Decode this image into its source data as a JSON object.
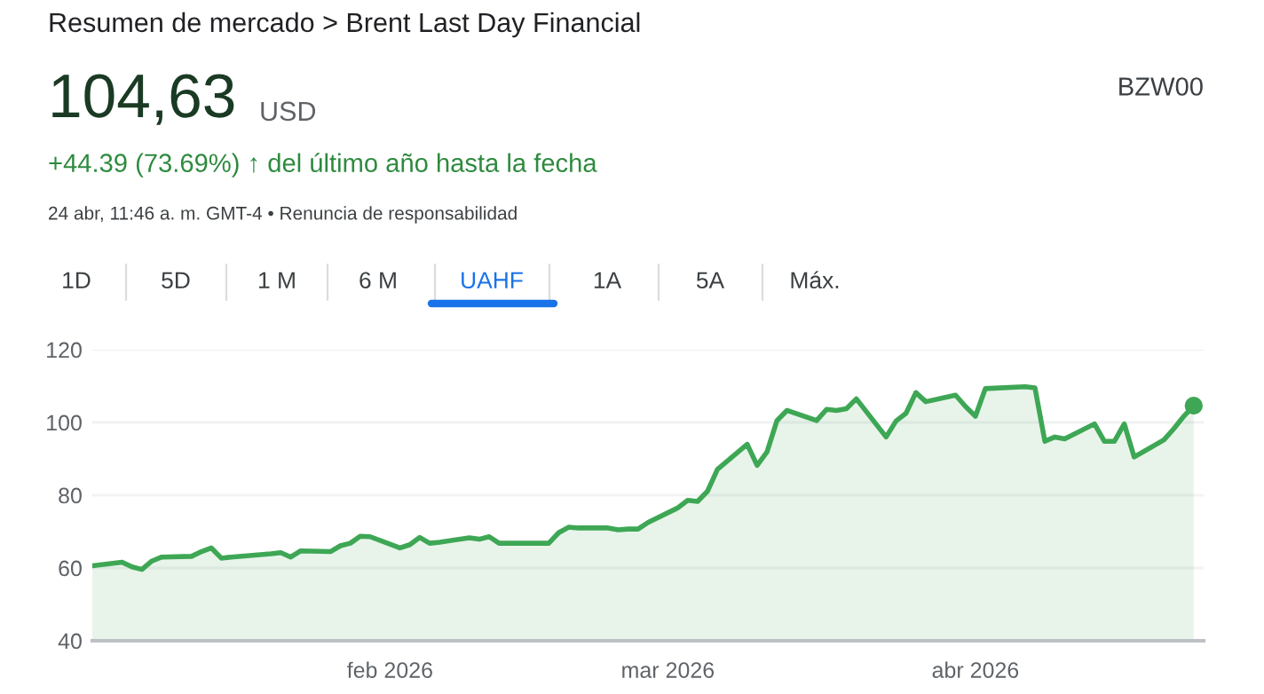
{
  "chart_data": {
    "type": "area",
    "title": "Resumen de mercado > Brent Last Day Financial",
    "annotations": [
      "104,63",
      "USD",
      "BZW00",
      "+44.39 (73.69%) ↑ del último año hasta la fecha",
      "24 abr, 11:46 a. m. GMT-4 • Renuncia de responsabilidad",
      "1D",
      "5D",
      "1 M",
      "6 M",
      "UAHF",
      "1A",
      "5A",
      "Máx."
    ],
    "x": [
      "2026-01-02",
      "2026-01-05",
      "2026-01-06",
      "2026-01-07",
      "2026-01-08",
      "2026-01-09",
      "2026-01-12",
      "2026-01-13",
      "2026-01-14",
      "2026-01-15",
      "2026-01-16",
      "2026-01-20",
      "2026-01-21",
      "2026-01-22",
      "2026-01-23",
      "2026-01-26",
      "2026-01-27",
      "2026-01-28",
      "2026-01-29",
      "2026-01-30",
      "2026-02-02",
      "2026-02-03",
      "2026-02-04",
      "2026-02-05",
      "2026-02-06",
      "2026-02-09",
      "2026-02-10",
      "2026-02-11",
      "2026-02-12",
      "2026-02-13",
      "2026-02-17",
      "2026-02-18",
      "2026-02-19",
      "2026-02-20",
      "2026-02-23",
      "2026-02-24",
      "2026-02-25",
      "2026-02-26",
      "2026-02-27",
      "2026-03-02",
      "2026-03-03",
      "2026-03-04",
      "2026-03-05",
      "2026-03-06",
      "2026-03-09",
      "2026-03-10",
      "2026-03-11",
      "2026-03-12",
      "2026-03-13",
      "2026-03-16",
      "2026-03-17",
      "2026-03-18",
      "2026-03-19",
      "2026-03-20",
      "2026-03-23",
      "2026-03-24",
      "2026-03-25",
      "2026-03-26",
      "2026-03-27",
      "2026-03-30",
      "2026-03-31",
      "2026-04-01",
      "2026-04-02",
      "2026-04-06",
      "2026-04-07",
      "2026-04-08",
      "2026-04-09",
      "2026-04-10",
      "2026-04-13",
      "2026-04-14",
      "2026-04-15",
      "2026-04-16",
      "2026-04-17",
      "2026-04-20",
      "2026-04-21",
      "2026-04-22",
      "2026-04-23"
    ],
    "series": [
      {
        "color": "#3ea755",
        "values": [
          60.6,
          61.6,
          60.3,
          59.6,
          61.9,
          63.0,
          63.2,
          64.5,
          65.5,
          62.7,
          63.0,
          63.9,
          64.2,
          63.0,
          64.7,
          64.5,
          66.1,
          66.8,
          68.7,
          68.6,
          65.5,
          66.4,
          68.4,
          66.8,
          67.1,
          68.3,
          67.9,
          68.6,
          66.8,
          66.8,
          66.8,
          69.7,
          71.2,
          71.0,
          71.0,
          70.5,
          70.7,
          70.7,
          72.5,
          76.5,
          78.6,
          78.3,
          81.1,
          87.1,
          94.0,
          88.2,
          91.9,
          100.5,
          103.3,
          100.5,
          103.6,
          103.3,
          103.8,
          106.5,
          96.0,
          100.4,
          102.5,
          108.2,
          105.7,
          107.5,
          104.4,
          101.7,
          109.3,
          109.8,
          109.5,
          94.8,
          96.0,
          95.5,
          99.6,
          94.8,
          94.8,
          99.6,
          90.5,
          95.2,
          98.3,
          101.7,
          104.6
        ]
      },
      {
        "type": "scatter",
        "color": "#3ea755",
        "x": [
          "2026-04-23"
        ],
        "values": [
          104.6
        ]
      }
    ],
    "xlim": [
      "2026-01-02",
      "2026-04-24"
    ],
    "xticks": [
      {
        "value": "2026-02-01",
        "label": "feb 2026"
      },
      {
        "value": "2026-03-01",
        "label": "mar 2026"
      },
      {
        "value": "2026-04-01",
        "label": "abr 2026"
      }
    ],
    "ylim": [
      40,
      120
    ],
    "yticks": [
      40,
      60,
      80,
      100,
      120
    ],
    "grid": "y"
  }
}
